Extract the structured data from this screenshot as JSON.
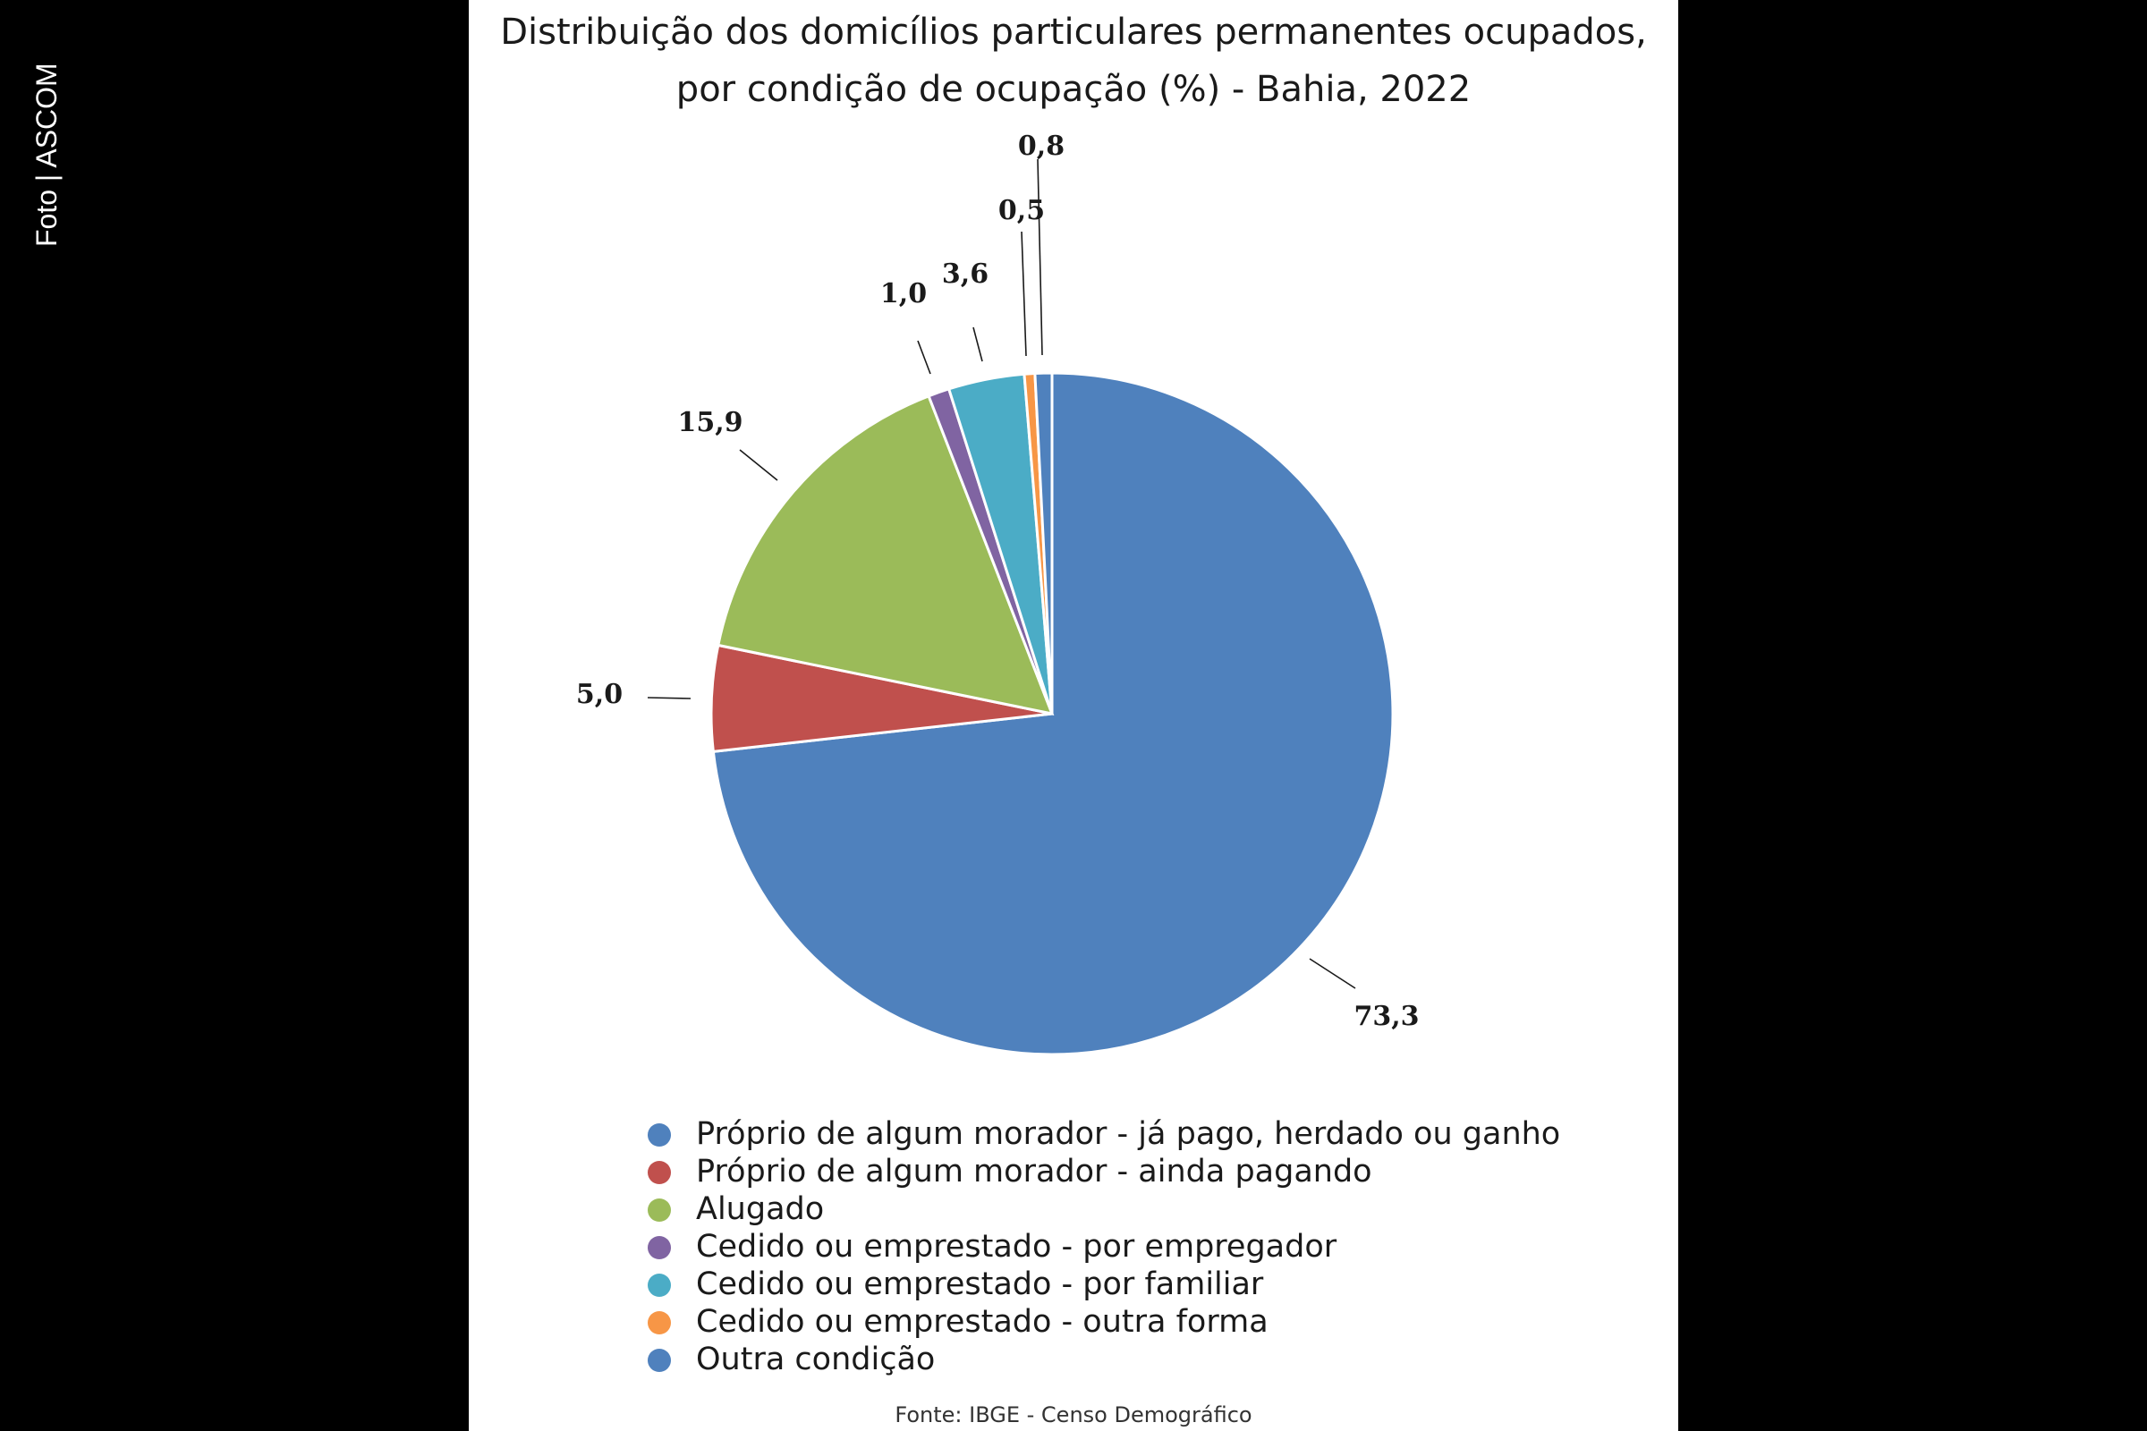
{
  "watermark": "Foto | ASCOM",
  "chart_data": {
    "type": "pie",
    "title_line1": "Distribuição dos domicílios particulares permanentes ocupados,",
    "title_line2": "por condição de ocupação (%) - Bahia, 2022",
    "slices": [
      {
        "label": "Próprio de algum morador - já pago, herdado ou ganho",
        "value": 73.3,
        "display": "73,3",
        "color": "#4f81bd"
      },
      {
        "label": "Próprio de algum morador - ainda pagando",
        "value": 5.0,
        "display": "5,0",
        "color": "#c0504d"
      },
      {
        "label": "Alugado",
        "value": 15.9,
        "display": "15,9",
        "color": "#9bbb59"
      },
      {
        "label": "Cedido ou emprestado - por empregador",
        "value": 1.0,
        "display": "1,0",
        "color": "#8064a2"
      },
      {
        "label": "Cedido ou emprestado - por familiar",
        "value": 3.6,
        "display": "3,6",
        "color": "#4bacc6"
      },
      {
        "label": "Cedido ou emprestado - outra forma",
        "value": 0.5,
        "display": "0,5",
        "color": "#f79646"
      },
      {
        "label": "Outra condição",
        "value": 0.8,
        "display": "0,8",
        "color": "#4f81bd"
      }
    ],
    "start": "12 o'clock, clockwise",
    "legend_position": "bottom",
    "source": "Fonte: IBGE - Censo Demográfico"
  }
}
